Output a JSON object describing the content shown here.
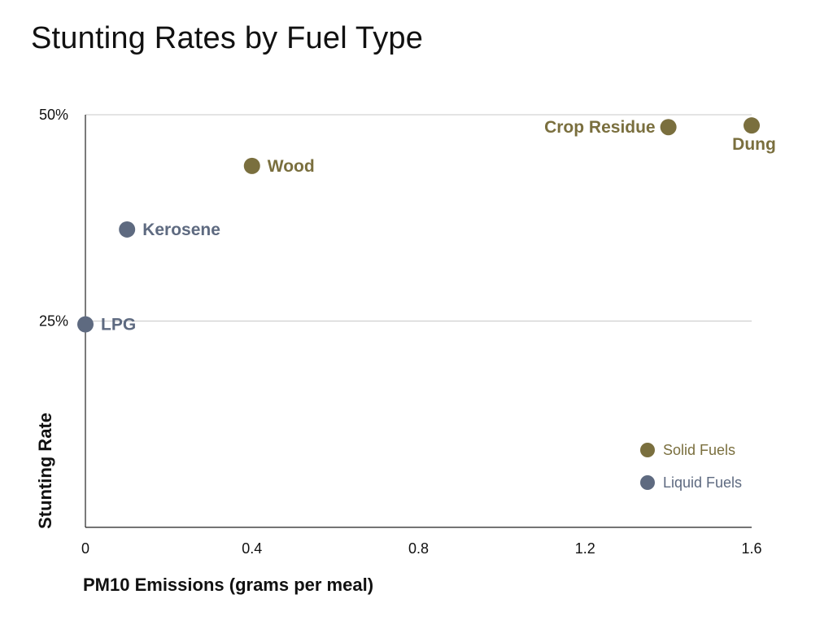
{
  "chart_data": {
    "type": "scatter",
    "title": "Stunting Rates by Fuel Type",
    "xlabel": "PM10 Emissions (grams per meal)",
    "ylabel": "Stunting Rate",
    "xlim": [
      0,
      1.6
    ],
    "ylim": [
      0,
      50
    ],
    "xticks": [
      0,
      0.4,
      0.8,
      1.2,
      1.6
    ],
    "xtick_labels": [
      "0",
      "0.4",
      "0.8",
      "1.2",
      "1.6"
    ],
    "yticks": [
      25,
      50
    ],
    "ytick_labels": [
      "25%",
      "50%"
    ],
    "grid": "horizontal",
    "legend_position": "bottom-right",
    "series": [
      {
        "name": "Solid Fuels",
        "color": "#7a6f3e",
        "points": [
          {
            "label": "Wood",
            "x": 0.4,
            "y": 43.8,
            "label_side": "right"
          },
          {
            "label": "Crop Residue",
            "x": 1.4,
            "y": 48.5,
            "label_side": "left"
          },
          {
            "label": "Dung",
            "x": 1.6,
            "y": 48.7,
            "label_side": "below"
          }
        ]
      },
      {
        "name": "Liquid Fuels",
        "color": "#5e6a80",
        "points": [
          {
            "label": "Kerosene",
            "x": 0.1,
            "y": 36.1,
            "label_side": "right"
          },
          {
            "label": "LPG",
            "x": 0.0,
            "y": 24.6,
            "label_side": "right"
          }
        ]
      }
    ]
  }
}
